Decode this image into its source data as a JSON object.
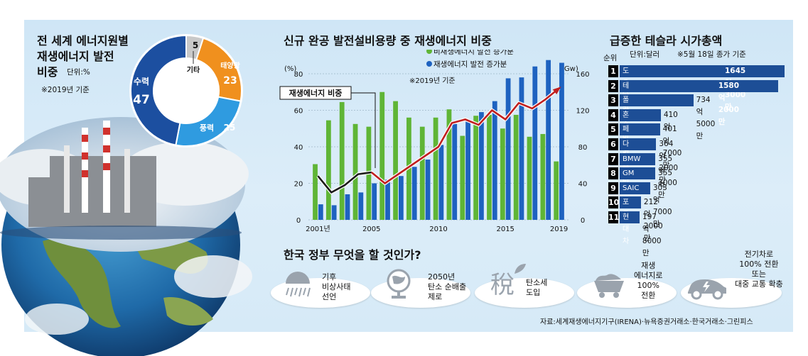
{
  "left": {
    "title_line1": "전 세계 에너지원별",
    "title_line2": "재생에너지 발전",
    "title_line3": "비중",
    "unit": "단위:%",
    "note": "※2019년 기준"
  },
  "chart_data": [
    {
      "type": "pie",
      "title": "전 세계 에너지원별 재생에너지 발전 비중",
      "unit": "%",
      "slices": [
        {
          "label": "수력",
          "value": 47,
          "color": "#1c4fa0"
        },
        {
          "label": "풍력",
          "value": 25,
          "color": "#2f9be0"
        },
        {
          "label": "태양광",
          "value": 23,
          "color": "#f0901e"
        },
        {
          "label": "기타",
          "value": 5,
          "color": "#c9c9c9"
        }
      ]
    },
    {
      "type": "bar",
      "title": "신규 완공 발전설비용량 중 재생에너지 비중",
      "ylabel_left": "(%)",
      "ylabel_right": "(Gw)",
      "ylim_left": [
        0,
        80
      ],
      "ylim_right": [
        0,
        160
      ],
      "yticks_left": [
        0,
        20,
        40,
        60,
        80
      ],
      "yticks_right": [
        0,
        40,
        80,
        120,
        160
      ],
      "x": [
        2001,
        2002,
        2003,
        2004,
        2005,
        2006,
        2007,
        2008,
        2009,
        2010,
        2011,
        2012,
        2013,
        2014,
        2015,
        2016,
        2017,
        2018,
        2019
      ],
      "x_tick_labels": [
        "2001년",
        "2005",
        "2010",
        "2015",
        "2019"
      ],
      "x_tick_values": [
        2001,
        2005,
        2010,
        2015,
        2019
      ],
      "note": "※2019년 기준",
      "series": [
        {
          "name": "비재생에너지 발전 증가분",
          "axis": "right",
          "color": "#5fb536",
          "values": [
            61,
            109,
            129,
            105,
            102,
            140,
            130,
            112,
            102,
            112,
            121,
            92,
            114,
            115,
            100,
            115,
            91,
            94,
            64
          ]
        },
        {
          "name": "재생에너지 발전 증가분",
          "axis": "right",
          "color": "#1e62c0",
          "values": [
            17,
            16,
            28,
            30,
            40,
            44,
            48,
            58,
            66,
            82,
            105,
            110,
            118,
            130,
            155,
            156,
            168,
            175,
            172
          ]
        },
        {
          "name": "재생에너지 비중",
          "axis": "left",
          "color": "#c02020",
          "type": "line",
          "values": [
            24,
            15,
            19,
            25,
            26,
            20,
            25,
            30,
            35,
            40,
            53,
            55,
            52,
            60,
            55,
            64,
            61,
            66,
            72
          ]
        }
      ],
      "annotation": "재생에너지 비중"
    },
    {
      "type": "bar",
      "orientation": "horizontal",
      "title": "급증한 테슬라 시가총액",
      "unit": "단위:달러",
      "note": "※5월 18일 종가 기준",
      "rank_label": "순위",
      "rows": [
        {
          "rank": "1",
          "name": "도요타",
          "value_label": "1645억3000만",
          "value": 1645.3
        },
        {
          "rank": "2",
          "name": "테슬라",
          "value_label": "1580억2000만",
          "value": 1580.2
        },
        {
          "rank": "3",
          "name": "폴크스바겐",
          "value_label": "734억5000만",
          "value": 734.5
        },
        {
          "rank": "4",
          "name": "혼다",
          "value_label": "410억",
          "value": 410
        },
        {
          "rank": "5",
          "name": "페라리",
          "value_label": "401억7000만",
          "value": 401.7
        },
        {
          "rank": "6",
          "name": "다이믈러",
          "value_label": "364억2000만",
          "value": 364.2
        },
        {
          "rank": "7",
          "name": "BMW",
          "value_label": "355억7000만",
          "value": 355.7
        },
        {
          "rank": "8",
          "name": "GM",
          "value_label": "355억",
          "value": 355
        },
        {
          "rank": "9",
          "name": "SAIC",
          "value_label": "303억7000만",
          "value": 303.7
        },
        {
          "rank": "10",
          "name": "포드",
          "value_label": "212억2000만",
          "value": 212.2
        },
        {
          "rank": "11",
          "name": "현대차",
          "value_label": "197억8000만",
          "value": 197.8
        }
      ]
    }
  ],
  "policy": {
    "title": "한국 정부 무엇을 할 것인가?",
    "items": [
      {
        "icon": "weather-icon",
        "line1": "기후",
        "line2": "비상사태",
        "line3": "선언",
        "line4": ""
      },
      {
        "icon": "globe-icon",
        "line1": "2050년",
        "line2": "탄소 순배출",
        "line3": "제로",
        "line4": ""
      },
      {
        "icon": "tax-icon",
        "glyph": "稅",
        "line1": "탄소세",
        "line2": "도입",
        "line3": "",
        "line4": ""
      },
      {
        "icon": "coal-cart-icon",
        "line1": "재생",
        "line2": "에너지로",
        "line3": "100%",
        "line4": "전환"
      },
      {
        "icon": "electric-car-icon",
        "line1": "전기차로",
        "line2": "100% 전환",
        "line3": "또는",
        "line4": "대중 교통 확충"
      }
    ]
  },
  "source": "자료:세계재생에너지기구(IRENA)·뉴욕증권거래소·한국거래소·그린피스"
}
